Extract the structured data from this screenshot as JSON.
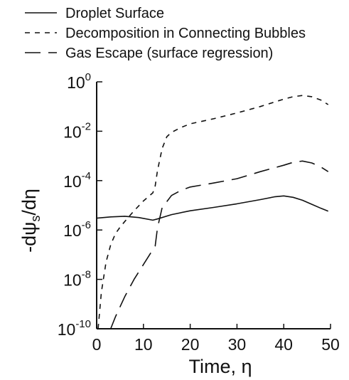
{
  "chart_data": {
    "type": "line",
    "xlabel": "Time, η",
    "ylabel": "-dψs/dη",
    "yscale": "log",
    "xlim": [
      0,
      50
    ],
    "ylim": [
      1e-10,
      1
    ],
    "grid": false,
    "legend_position": "top-left, above plot",
    "x_ticks": [
      {
        "value": 0,
        "label": "0"
      },
      {
        "value": 10,
        "label": "10"
      },
      {
        "value": 20,
        "label": "20"
      },
      {
        "value": 30,
        "label": "30"
      },
      {
        "value": 40,
        "label": "40"
      },
      {
        "value": 50,
        "label": "50"
      }
    ],
    "y_ticks": [
      {
        "value": 1e-10,
        "base": "10",
        "exp": "-10"
      },
      {
        "value": 1e-08,
        "base": "10",
        "exp": "-8"
      },
      {
        "value": 1e-06,
        "base": "10",
        "exp": "-6"
      },
      {
        "value": 0.0001,
        "base": "10",
        "exp": "-4"
      },
      {
        "value": 0.01,
        "base": "10",
        "exp": "-2"
      },
      {
        "value": 1,
        "base": "10",
        "exp": "0"
      }
    ],
    "series": [
      {
        "name": "Droplet Surface",
        "style": "solid",
        "x": [
          0,
          3,
          6,
          9,
          12,
          13,
          16,
          20,
          25,
          30,
          35,
          38,
          40,
          42,
          44,
          46,
          48,
          49.5
        ],
        "y": [
          3e-06,
          3.4e-06,
          3.6e-06,
          3.2e-06,
          2.5e-06,
          2.8e-06,
          4.2e-06,
          6e-06,
          8.2e-06,
          1.15e-05,
          1.7e-05,
          2.2e-05,
          2.4e-05,
          2.1e-05,
          1.6e-05,
          1.1e-05,
          7.5e-06,
          5.8e-06
        ]
      },
      {
        "name": "Decomposition in Connecting Bubbles",
        "style": "dashed",
        "x": [
          0.3,
          1,
          2,
          3,
          4,
          5,
          6,
          8,
          10,
          12,
          12.5,
          13,
          14,
          15,
          16,
          18,
          20,
          25,
          30,
          35,
          40,
          42,
          44,
          46,
          48,
          49.5
        ],
        "y": [
          1e-10,
          3e-09,
          5e-08,
          2.5e-07,
          7e-07,
          1.3e-06,
          2.2e-06,
          6e-06,
          1.5e-05,
          3.2e-05,
          6e-05,
          0.00025,
          0.002,
          0.006,
          0.009,
          0.014,
          0.02,
          0.032,
          0.055,
          0.1,
          0.2,
          0.25,
          0.28,
          0.25,
          0.18,
          0.12
        ]
      },
      {
        "name": "Gas Escape (surface regression)",
        "style": "long-dash",
        "x": [
          3,
          4,
          6,
          8,
          10,
          12,
          12.5,
          13,
          14,
          16,
          18,
          20,
          25,
          30,
          35,
          40,
          42,
          44,
          46,
          48,
          49.5
        ],
        "y": [
          1e-10,
          3e-10,
          2e-09,
          1e-08,
          4e-08,
          1.6e-07,
          2.2e-07,
          1.2e-06,
          8e-06,
          2.5e-05,
          4e-05,
          5.5e-05,
          8e-05,
          0.00012,
          0.00023,
          0.00042,
          0.00055,
          0.00062,
          0.00052,
          0.00035,
          0.00023
        ]
      }
    ]
  }
}
